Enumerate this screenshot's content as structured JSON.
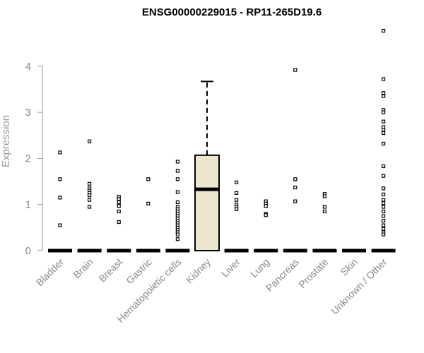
{
  "chart_data": {
    "type": "boxplot",
    "title": "ENSG00000229015 - RP11-265D19.6",
    "ylabel": "Expression",
    "xlabel": "",
    "ylim": [
      0,
      4.9
    ],
    "yticks": [
      0,
      1,
      2,
      3,
      4
    ],
    "box_fill": "#ede7cf",
    "categories": [
      "Bladder",
      "Brain",
      "Breast",
      "Gastric",
      "Hematopoietic cells",
      "Kidney",
      "Liver",
      "Lung",
      "Pancreas",
      "Prostate",
      "Skin",
      "Unknown / Other"
    ],
    "boxes": [
      {
        "category": "Bladder",
        "min": 0,
        "q1": 0,
        "median": 0,
        "q3": 0,
        "max": 0,
        "outliers": [
          2.13,
          1.55,
          1.15,
          0.55
        ]
      },
      {
        "category": "Brain",
        "min": 0,
        "q1": 0,
        "median": 0,
        "q3": 0,
        "max": 0,
        "outliers": [
          2.37,
          1.45,
          1.35,
          1.3,
          1.25,
          1.2,
          1.1,
          0.95
        ]
      },
      {
        "category": "Breast",
        "min": 0,
        "q1": 0,
        "median": 0,
        "q3": 0,
        "max": 0,
        "outliers": [
          1.17,
          1.12,
          1.05,
          0.97,
          0.85,
          0.62
        ]
      },
      {
        "category": "Gastric",
        "min": 0,
        "q1": 0,
        "median": 0,
        "q3": 0,
        "max": 0,
        "outliers": [
          1.55,
          1.02
        ]
      },
      {
        "category": "Hematopoietic cells",
        "min": 0,
        "q1": 0,
        "median": 0,
        "q3": 0,
        "max": 0,
        "outliers": [
          1.93,
          1.73,
          1.55,
          1.27,
          1.05,
          0.95,
          0.9,
          0.85,
          0.8,
          0.75,
          0.7,
          0.65,
          0.6,
          0.55,
          0.5,
          0.45,
          0.4,
          0.35,
          0.25
        ]
      },
      {
        "category": "Kidney",
        "min": 0,
        "q1": 0,
        "median": 1.33,
        "q3": 2.07,
        "max": 3.67,
        "outliers": []
      },
      {
        "category": "Liver",
        "min": 0,
        "q1": 0,
        "median": 0,
        "q3": 0,
        "max": 0,
        "outliers": [
          1.48,
          1.25,
          1.1,
          1.0,
          0.95,
          0.9
        ]
      },
      {
        "category": "Lung",
        "min": 0,
        "q1": 0,
        "median": 0,
        "q3": 0,
        "max": 0,
        "outliers": [
          1.07,
          1.02,
          0.97,
          0.8,
          0.77
        ]
      },
      {
        "category": "Pancreas",
        "min": 0,
        "q1": 0,
        "median": 0,
        "q3": 0,
        "max": 0,
        "outliers": [
          3.92,
          1.55,
          1.37,
          1.07
        ]
      },
      {
        "category": "Prostate",
        "min": 0,
        "q1": 0,
        "median": 0,
        "q3": 0,
        "max": 0,
        "outliers": [
          1.23,
          1.18,
          0.95,
          0.85
        ]
      },
      {
        "category": "Skin",
        "min": 0,
        "q1": 0,
        "median": 0,
        "q3": 0,
        "max": 0,
        "outliers": []
      },
      {
        "category": "Unknown / Other",
        "min": 0,
        "q1": 0,
        "median": 0,
        "q3": 0,
        "max": 0,
        "outliers": [
          4.77,
          3.72,
          3.42,
          3.35,
          3.05,
          3.0,
          2.8,
          2.68,
          2.62,
          2.55,
          2.32,
          1.83,
          1.62,
          1.35,
          1.22,
          1.1,
          1.03,
          0.95,
          0.85,
          0.75,
          0.65,
          0.55,
          0.47,
          0.4,
          0.35
        ]
      }
    ]
  }
}
